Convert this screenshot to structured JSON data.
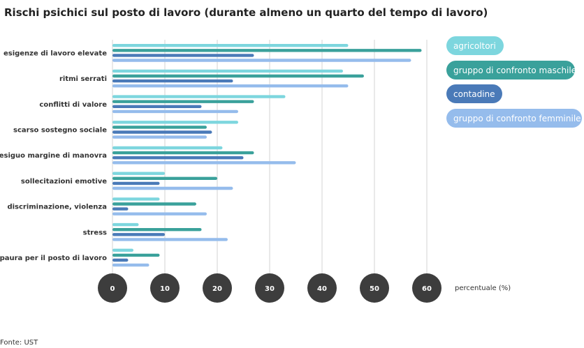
{
  "chart_data": {
    "type": "bar",
    "orientation": "horizontal",
    "title": "Rischi psichici sul posto di lavoro (durante almeno un quarto del tempo di lavoro)",
    "xlabel": "percentuale (%)",
    "xlim": [
      0,
      60
    ],
    "xticks": [
      "0",
      "10",
      "20",
      "30",
      "40",
      "50",
      "60"
    ],
    "grid": true,
    "legend_position": "right",
    "categories": [
      "esigenze di lavoro elevate",
      "ritmi serrati",
      "conflitti di valore",
      "scarso sostegno sociale",
      "esiguo margine di manovra",
      "sollecitazioni emotive",
      "discriminazione, violenza",
      "stress",
      "paura per il posto di lavoro"
    ],
    "series": [
      {
        "name": "agricoltori",
        "color": "#7dd6de",
        "values": [
          45,
          44,
          33,
          24,
          21,
          10,
          9,
          5,
          4
        ]
      },
      {
        "name": "gruppo di confronto maschile",
        "color": "#3aa19b",
        "values": [
          59,
          48,
          27,
          18,
          27,
          20,
          16,
          17,
          9
        ]
      },
      {
        "name": "contadine",
        "color": "#4a7ab8",
        "values": [
          27,
          23,
          17,
          19,
          25,
          9,
          3,
          10,
          3
        ]
      },
      {
        "name": "gruppo di confronto femminile",
        "color": "#95bcec",
        "values": [
          57,
          45,
          24,
          18,
          35,
          23,
          18,
          22,
          7
        ]
      }
    ]
  },
  "source": "Fonte: UST"
}
